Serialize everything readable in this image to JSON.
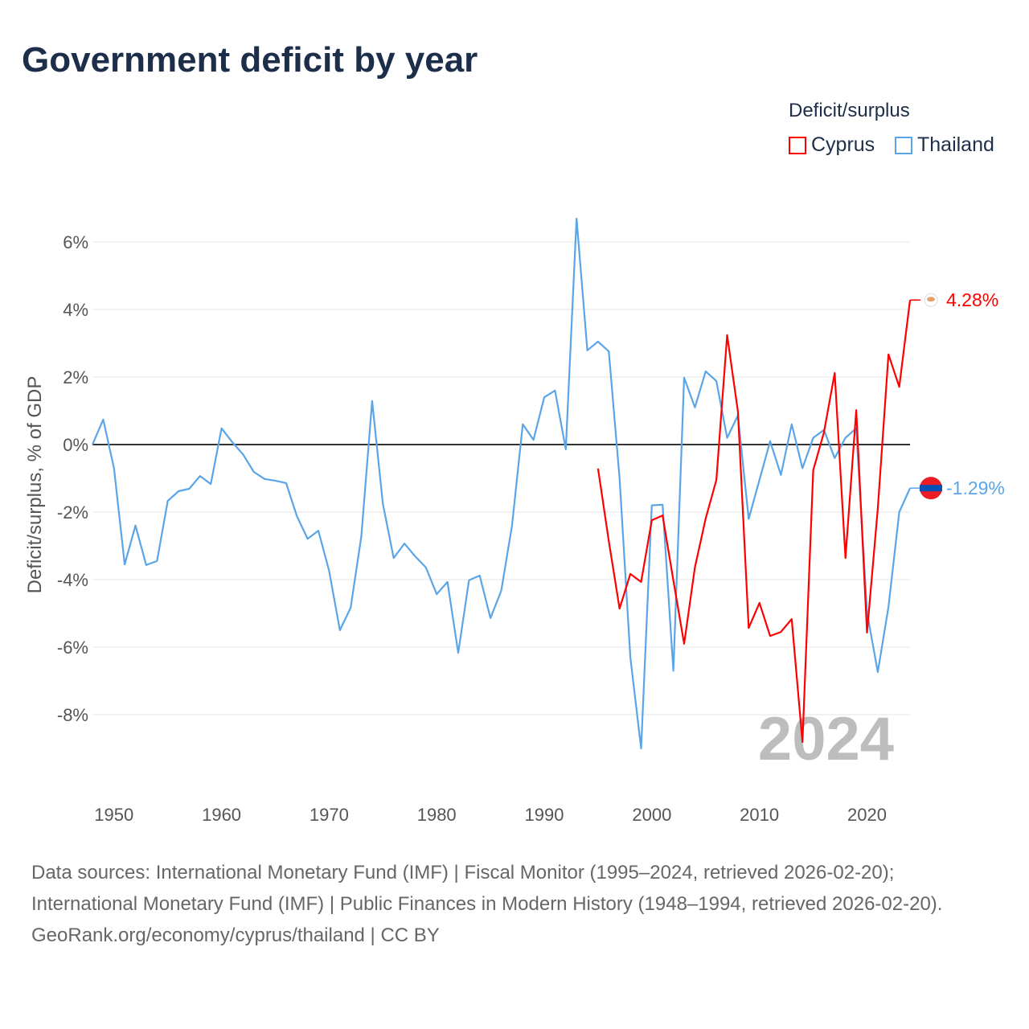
{
  "title": "Government deficit by year",
  "legend": {
    "title": "Deficit/surplus",
    "items": [
      "Cyprus",
      "Thailand"
    ]
  },
  "colors": {
    "Cyprus": "#ff0000",
    "Thailand": "#5aa5e8"
  },
  "watermark": "2024",
  "end_labels": {
    "Cyprus": "4.28%",
    "Thailand": "-1.29%"
  },
  "footer": {
    "sources": "Data sources: International Monetary Fund (IMF) | Fiscal Monitor (1995–2024, retrieved 2026-02-20); International Monetary Fund (IMF) | Public Finances in Modern History (1948–1994, retrieved 2026-02-20).",
    "credit": "GeoRank.org/economy/cyprus/thailand | CC BY"
  },
  "chart_data": {
    "type": "line",
    "title": "Government deficit by year",
    "xlabel": "",
    "ylabel": "Deficit/surplus, % of GDP",
    "xlim": [
      1948,
      2024
    ],
    "ylim": [
      -10,
      7
    ],
    "xticks": [
      1950,
      1960,
      1970,
      1980,
      1990,
      2000,
      2010,
      2020
    ],
    "yticks": [
      6,
      4,
      2,
      0,
      -2,
      -4,
      -6,
      -8
    ],
    "ytick_labels": [
      "6%",
      "4%",
      "2%",
      "0%",
      "-2%",
      "-4%",
      "-6%",
      "-8%"
    ],
    "grid": true,
    "legend_position": "top-right",
    "series": [
      {
        "name": "Thailand",
        "start": 1948,
        "values": [
          0.0,
          0.74,
          -0.7,
          -3.55,
          -2.4,
          -3.57,
          -3.45,
          -1.67,
          -1.38,
          -1.31,
          -0.93,
          -1.17,
          0.48,
          0.07,
          -0.29,
          -0.81,
          -1.02,
          -1.07,
          -1.14,
          -2.12,
          -2.79,
          -2.55,
          -3.74,
          -5.5,
          -4.83,
          -2.71,
          1.29,
          -1.76,
          -3.36,
          -2.93,
          -3.31,
          -3.64,
          -4.43,
          -4.07,
          -6.17,
          -4.02,
          -3.88,
          -5.14,
          -4.33,
          -2.4,
          0.6,
          0.14,
          1.4,
          1.6,
          -0.14,
          6.69,
          2.79,
          3.05,
          2.76,
          -1.0,
          -6.3,
          -9.0,
          -1.8,
          -1.78,
          -6.7,
          1.98,
          1.1,
          2.17,
          1.88,
          0.2,
          0.86,
          -2.2,
          -1.05,
          0.1,
          -0.9,
          0.6,
          -0.7,
          0.2,
          0.43,
          -0.4,
          0.2,
          0.48,
          -4.97,
          -6.74,
          -4.81,
          -2.0,
          -1.29
        ]
      },
      {
        "name": "Cyprus",
        "start": 1995,
        "values": [
          -0.71,
          -2.86,
          -4.86,
          -3.83,
          -4.07,
          -2.24,
          -2.1,
          -4.02,
          -5.9,
          -3.64,
          -2.19,
          -1.05,
          3.24,
          0.98,
          -5.43,
          -4.69,
          -5.67,
          -5.55,
          -5.17,
          -8.81,
          -0.76,
          0.36,
          2.12,
          -3.36,
          1.02,
          -5.57,
          -1.9,
          2.67,
          1.71,
          4.28
        ]
      }
    ]
  }
}
